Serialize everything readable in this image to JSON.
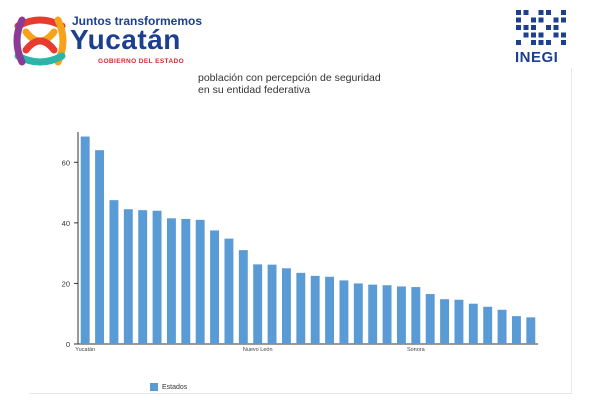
{
  "header": {
    "yucatan_logo": {
      "tagline": "Juntos transformemos",
      "name": "Yucatán",
      "subtitle": "GOBIERNO DEL ESTADO",
      "colors": [
        "#e63b2e",
        "#f6a21a",
        "#2bb5a8",
        "#8b3a96",
        "#1d3f8f"
      ]
    },
    "inegi_logo": {
      "name": "INEGI",
      "color": "#1d3f8f"
    }
  },
  "chart_data": {
    "type": "bar",
    "title_lines": [
      "población con percepción de seguridad",
      "en su entidad federativa"
    ],
    "series": [
      {
        "name": "Estados",
        "color": "#5b9bd5",
        "values": [
          68.5,
          64.0,
          47.5,
          44.5,
          44.2,
          44.0,
          41.5,
          41.3,
          41.0,
          37.5,
          34.8,
          31.0,
          26.3,
          26.2,
          25.0,
          23.5,
          22.5,
          22.2,
          21.0,
          20.0,
          19.6,
          19.4,
          19.0,
          18.8,
          16.5,
          14.8,
          14.6,
          13.3,
          12.3,
          11.3,
          9.2,
          8.8
        ]
      }
    ],
    "category_labels": [
      {
        "index": 0,
        "label": "Yucatán"
      },
      {
        "index": 12,
        "label": "Nuevo León"
      },
      {
        "index": 23,
        "label": "Sonora"
      }
    ],
    "ylim": [
      0,
      70
    ],
    "yticks": [
      0,
      20,
      40,
      60
    ],
    "grid": false,
    "legend_position": "bottom-left"
  }
}
